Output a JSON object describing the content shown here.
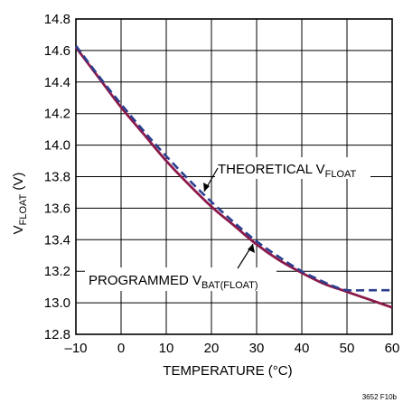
{
  "chart_data": {
    "type": "line",
    "xlabel": "TEMPERATURE (°C)",
    "ylabel_main": "V",
    "ylabel_sub": "FLOAT",
    "ylabel_unit": " (V)",
    "xlim": [
      -10,
      60
    ],
    "ylim": [
      12.8,
      14.8
    ],
    "x_ticks": [
      -10,
      0,
      10,
      20,
      30,
      40,
      50,
      60
    ],
    "x_tick_labels": [
      "–10",
      "0",
      "10",
      "20",
      "30",
      "40",
      "50",
      "60"
    ],
    "y_ticks": [
      12.8,
      13.0,
      13.2,
      13.4,
      13.6,
      13.8,
      14.0,
      14.2,
      14.4,
      14.6,
      14.8
    ],
    "y_tick_labels": [
      "12.8",
      "13.0",
      "13.2",
      "13.4",
      "13.6",
      "13.8",
      "14.0",
      "14.2",
      "14.4",
      "14.6",
      "14.8"
    ],
    "grid": true,
    "series": [
      {
        "style": "solid",
        "color": "#8b1a4a",
        "x": [
          -10,
          -5,
          0,
          5,
          10,
          15,
          20,
          25,
          30,
          35,
          40,
          45,
          50,
          55,
          60
        ],
        "y": [
          14.62,
          14.43,
          14.24,
          14.07,
          13.9,
          13.75,
          13.61,
          13.49,
          13.37,
          13.27,
          13.19,
          13.12,
          13.07,
          13.02,
          12.97
        ]
      },
      {
        "style": "dashed",
        "color": "#2b3f8f",
        "x": [
          -10,
          -5,
          0,
          5,
          10,
          15,
          20,
          25,
          30,
          35,
          40,
          45,
          47.5,
          50,
          55,
          60
        ],
        "y": [
          14.63,
          14.44,
          14.26,
          14.09,
          13.93,
          13.78,
          13.64,
          13.51,
          13.39,
          13.29,
          13.2,
          13.13,
          13.1,
          13.08,
          13.08,
          13.08
        ]
      }
    ],
    "annotations": {
      "theoretical": {
        "main": "THEORETICAL V",
        "sub": "FLOAT"
      },
      "programmed": {
        "main": "PROGRAMMED V",
        "sub": "BAT(FLOAT)"
      }
    },
    "figure_id": "3652 F10b"
  }
}
